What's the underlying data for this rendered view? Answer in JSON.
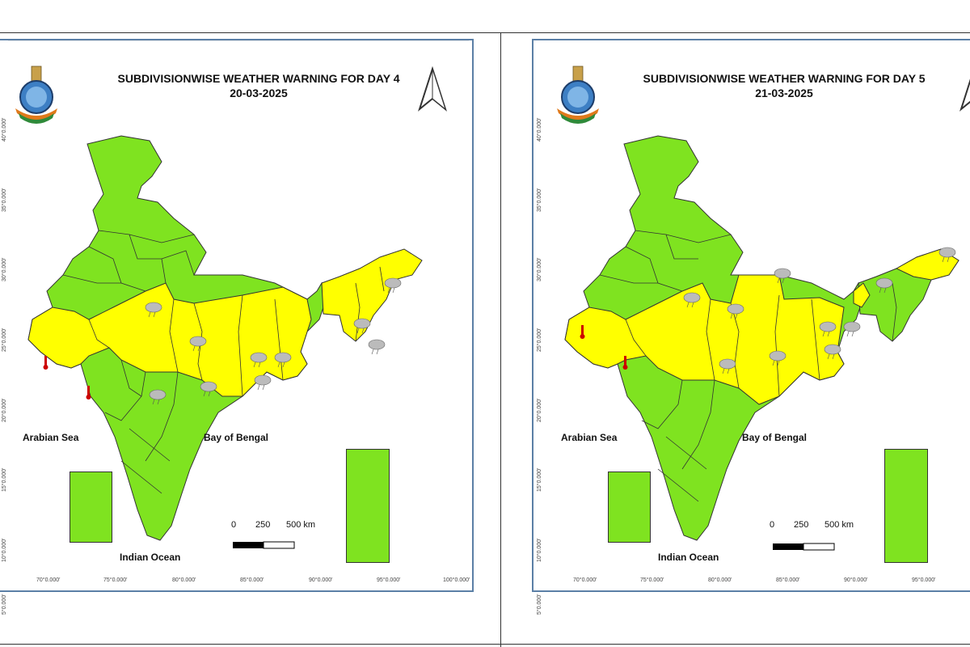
{
  "panels": [
    {
      "title_line1": "SUBDIVISIONWISE WEATHER WARNING FOR DAY 4",
      "title_line2": "20-03-2025",
      "sea_labels": {
        "arabian": "Arabian Sea",
        "bengal": "Bay of Bengal",
        "indian": "Indian Ocean"
      },
      "scale": {
        "s0": "0",
        "s250": "250",
        "s500": "500 km"
      },
      "lat_labels": [
        "40°0.000'",
        "35°0.000'",
        "30°0.000'",
        "25°0.000'",
        "20°0.000'",
        "15°0.000'",
        "10°0.000'",
        "5°0.000'"
      ],
      "lon_labels": [
        "70°0.000'",
        "75°0.000'",
        "80°0.000'",
        "85°0.000'",
        "90°0.000'",
        "95°0.000'",
        "100°0.000'"
      ]
    },
    {
      "title_line1": "SUBDIVISIONWISE WEATHER WARNING FOR DAY 5",
      "title_line2": "21-03-2025",
      "sea_labels": {
        "arabian": "Arabian Sea",
        "bengal": "Bay of Bengal",
        "indian": "Indian Ocean"
      },
      "scale": {
        "s0": "0",
        "s250": "250",
        "s500": "500 km"
      },
      "lat_labels": [
        "40°0.000'",
        "35°0.000'",
        "30°0.000'",
        "25°0.000'",
        "20°0.000'",
        "15°0.000'",
        "10°0.000'",
        "5°0.000'"
      ],
      "lon_labels": [
        "70°0.000'",
        "75°0.000'",
        "80°0.000'",
        "85°0.000'",
        "90°0.000'",
        "95°0.000'"
      ]
    }
  ],
  "colors": {
    "no_warning": "#7fe320",
    "yellow_warning": "#ffff00",
    "frame": "#5b7fa6"
  },
  "icons": [
    "emblem-icon",
    "north-arrow-icon",
    "thunderstorm-cloud-icon",
    "thermometer-icon"
  ]
}
